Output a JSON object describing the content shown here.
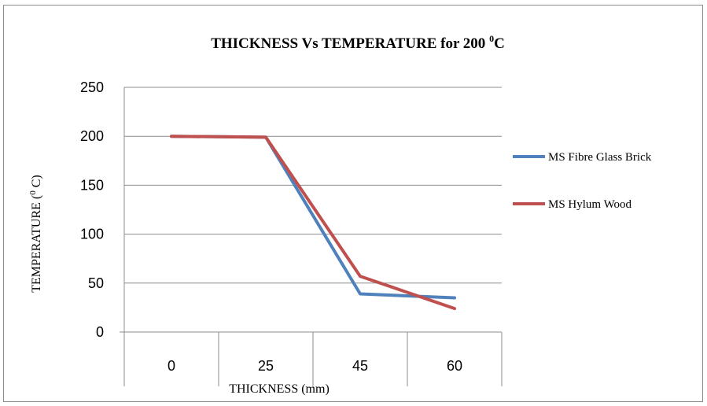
{
  "chart_data": {
    "type": "line",
    "title": "THICKNESS Vs TEMPERATURE for 200 ",
    "title_superscript": "0",
    "title_suffix": "C",
    "xlabel": "THICKNESS (mm)",
    "ylabel_prefix": "TEMPERATURE (",
    "ylabel_superscript": "0",
    "ylabel_suffix": " C)",
    "categories": [
      "0",
      "25",
      "45",
      "60"
    ],
    "ylim": [
      0,
      250
    ],
    "yticks": [
      0,
      50,
      100,
      150,
      200,
      250
    ],
    "grid": true,
    "legend_position": "right",
    "series": [
      {
        "name": "MS Fibre Glass Brick",
        "color": "#4f81bd",
        "values": [
          200,
          199,
          39,
          35
        ]
      },
      {
        "name": "MS Hylum Wood",
        "color": "#c0504d",
        "values": [
          200,
          199,
          57,
          24
        ]
      }
    ]
  }
}
